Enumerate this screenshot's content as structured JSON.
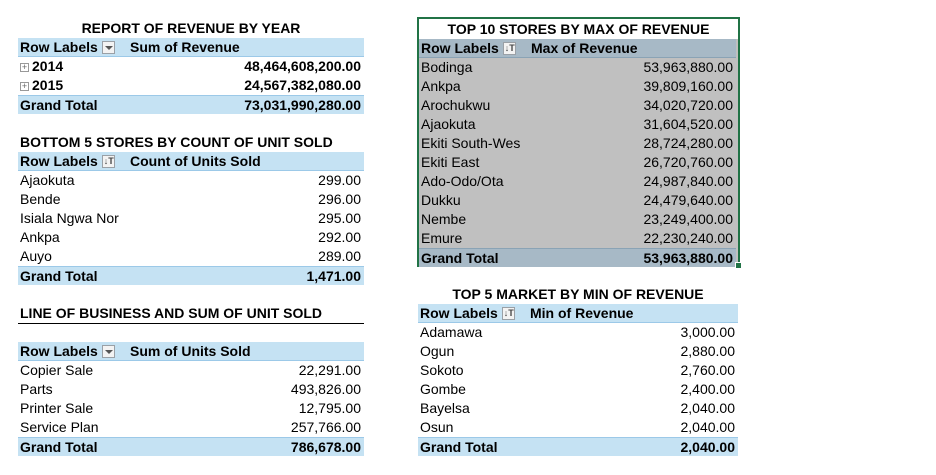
{
  "revenue_by_year": {
    "title": "REPORT OF REVENUE BY YEAR",
    "header": {
      "row_labels": "Row Labels",
      "value": "Sum of Revenue"
    },
    "rows": [
      {
        "label": "2014",
        "value": "48,464,608,200.00"
      },
      {
        "label": "2015",
        "value": "24,567,382,080.00"
      }
    ],
    "total": {
      "label": "Grand Total",
      "value": "73,031,990,280.00"
    }
  },
  "bottom5": {
    "title": "BOTTOM 5 STORES BY COUNT OF UNIT SOLD",
    "header": {
      "row_labels": "Row Labels",
      "value": "Count of Units Sold"
    },
    "rows": [
      {
        "label": "Ajaokuta",
        "value": "299.00"
      },
      {
        "label": "Bende",
        "value": "296.00"
      },
      {
        "label": "Isiala Ngwa Nor",
        "value": "295.00"
      },
      {
        "label": "Ankpa",
        "value": "292.00"
      },
      {
        "label": "Auyo",
        "value": "289.00"
      }
    ],
    "total": {
      "label": "Grand Total",
      "value": "1,471.00"
    }
  },
  "line_of_business": {
    "title": "LINE OF BUSINESS AND SUM OF UNIT SOLD",
    "header": {
      "row_labels": "Row Labels",
      "value": "Sum of Units Sold"
    },
    "rows": [
      {
        "label": "Copier Sale",
        "value": "22,291.00"
      },
      {
        "label": "Parts",
        "value": "493,826.00"
      },
      {
        "label": "Printer Sale",
        "value": "12,795.00"
      },
      {
        "label": "Service Plan",
        "value": "257,766.00"
      }
    ],
    "total": {
      "label": "Grand Total",
      "value": "786,678.00"
    }
  },
  "top10": {
    "title": "TOP 10 STORES BY MAX OF REVENUE",
    "header": {
      "row_labels": "Row Labels",
      "value": "Max of Revenue"
    },
    "rows": [
      {
        "label": "Bodinga",
        "value": "53,963,880.00"
      },
      {
        "label": "Ankpa",
        "value": "39,809,160.00"
      },
      {
        "label": "Arochukwu",
        "value": "34,020,720.00"
      },
      {
        "label": "Ajaokuta",
        "value": "31,604,520.00"
      },
      {
        "label": "Ekiti South-Wes",
        "value": "28,724,280.00"
      },
      {
        "label": "Ekiti East",
        "value": "26,720,760.00"
      },
      {
        "label": "Ado-Odo/Ota",
        "value": "24,987,840.00"
      },
      {
        "label": "Dukku",
        "value": "24,479,640.00"
      },
      {
        "label": "Nembe",
        "value": "23,249,400.00"
      },
      {
        "label": "Emure",
        "value": "22,230,240.00"
      }
    ],
    "total": {
      "label": "Grand Total",
      "value": "53,963,880.00"
    }
  },
  "top5_market": {
    "title": "TOP 5 MARKET BY MIN OF REVENUE",
    "header": {
      "row_labels": "Row Labels",
      "value": "Min of Revenue"
    },
    "rows": [
      {
        "label": "Adamawa",
        "value": "3,000.00"
      },
      {
        "label": "Ogun",
        "value": "2,880.00"
      },
      {
        "label": "Sokoto",
        "value": "2,760.00"
      },
      {
        "label": "Gombe",
        "value": "2,400.00"
      },
      {
        "label": "Bayelsa",
        "value": "2,040.00"
      },
      {
        "label": "Osun",
        "value": "2,040.00"
      }
    ],
    "total": {
      "label": "Grand Total",
      "value": "2,040.00"
    }
  },
  "icons": {
    "expand": "expand-plus-icon",
    "dropdown": "dropdown-arrow-icon",
    "filter": "filter-sort-icon"
  },
  "colors": {
    "header_blue": "#c5e2f3",
    "selected_gray": "#c0c0c0",
    "selection_green": "#217346"
  }
}
